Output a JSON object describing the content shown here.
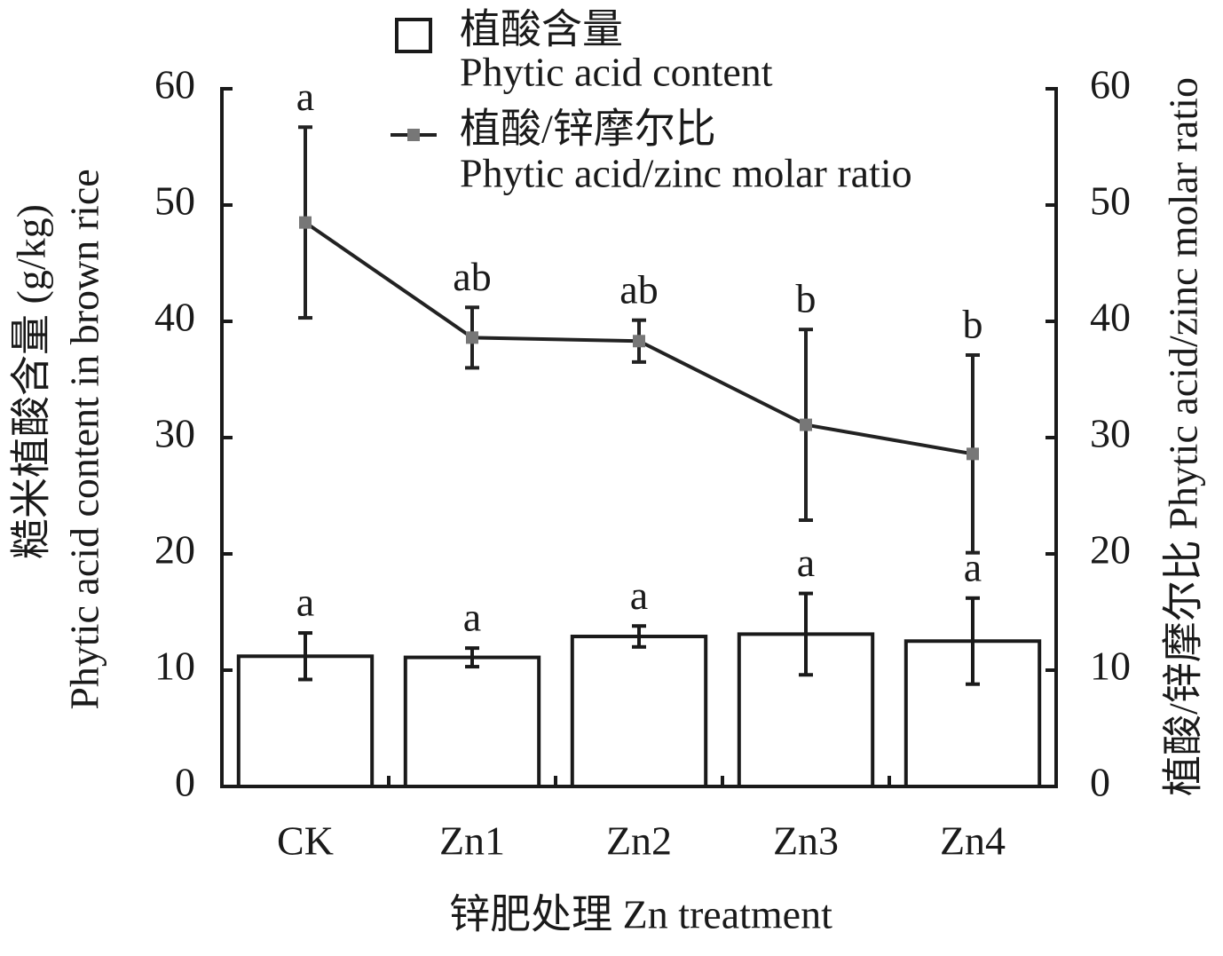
{
  "chart_data": {
    "type": "bar-line",
    "categories": [
      "CK",
      "Zn1",
      "Zn2",
      "Zn3",
      "Zn4"
    ],
    "x_label": "锌肥处理 Zn treatment",
    "y_label": "糙米植酸含量 (g/kg)",
    "y_label_en": "Phytic acid content in brown rice",
    "y2_label": "植酸/锌摩尔比 Phytic acid/zinc molar ratio",
    "ylim": [
      0,
      60
    ],
    "yticks": [
      0,
      10,
      20,
      30,
      40,
      50,
      60
    ],
    "y2lim": [
      0,
      60
    ],
    "y2ticks": [
      0,
      10,
      20,
      30,
      40,
      50,
      60
    ],
    "series": [
      {
        "name": "植酸含量",
        "name_en": "Phytic acid content",
        "type": "bar",
        "color": "#ffffff",
        "values": [
          11.2,
          11.1,
          12.9,
          13.1,
          12.5
        ],
        "errors": [
          2.0,
          0.8,
          0.9,
          3.5,
          3.7
        ],
        "significance": [
          "a",
          "a",
          "a",
          "a",
          "a"
        ]
      },
      {
        "name": "植酸/锌摩尔比",
        "name_en": "Phytic acid/zinc molar ratio",
        "type": "line",
        "axis": "y2",
        "color": "#222222",
        "marker_color": "#777777",
        "values": [
          48.5,
          38.6,
          38.3,
          31.1,
          28.6
        ],
        "errors": [
          8.2,
          2.6,
          1.8,
          8.2,
          8.5
        ],
        "significance": [
          "a",
          "ab",
          "ab",
          "b",
          "b"
        ]
      }
    ]
  }
}
